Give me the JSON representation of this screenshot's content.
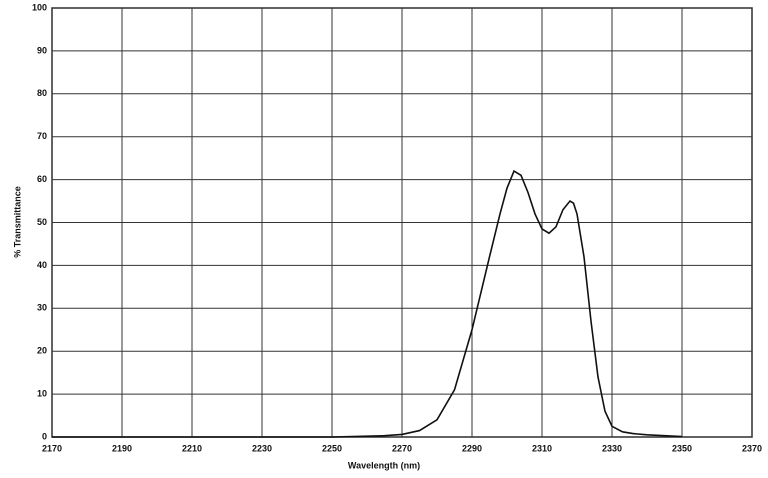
{
  "chart_data": {
    "type": "line",
    "x_label": "Wavelength (nm)",
    "y_label": "% Transmittance",
    "x": [
      2170,
      2250,
      2260,
      2265,
      2270,
      2275,
      2280,
      2285,
      2290,
      2295,
      2298,
      2300,
      2302,
      2304,
      2306,
      2308,
      2310,
      2312,
      2314,
      2316,
      2318,
      2319,
      2320,
      2322,
      2324,
      2326,
      2328,
      2330,
      2333,
      2336,
      2340,
      2345,
      2350
    ],
    "series": [
      {
        "name": null,
        "color": "#111111",
        "values": [
          0,
          0,
          0.2,
          0.3,
          0.6,
          1.5,
          4,
          11,
          25,
          42,
          52,
          58,
          62,
          61,
          57,
          52,
          48.5,
          47.5,
          49,
          53,
          55,
          54.5,
          52,
          42,
          27,
          14,
          6,
          2.5,
          1.2,
          0.8,
          0.5,
          0.3,
          0.1
        ]
      }
    ],
    "xlim": [
      2170,
      2370
    ],
    "xticks": [
      2170,
      2190,
      2210,
      2230,
      2250,
      2270,
      2290,
      2310,
      2330,
      2350,
      2370
    ],
    "ylim": [
      0,
      100
    ],
    "yticks": [
      0,
      10,
      20,
      30,
      40,
      50,
      60,
      70,
      80,
      90,
      100
    ],
    "grid": true
  }
}
